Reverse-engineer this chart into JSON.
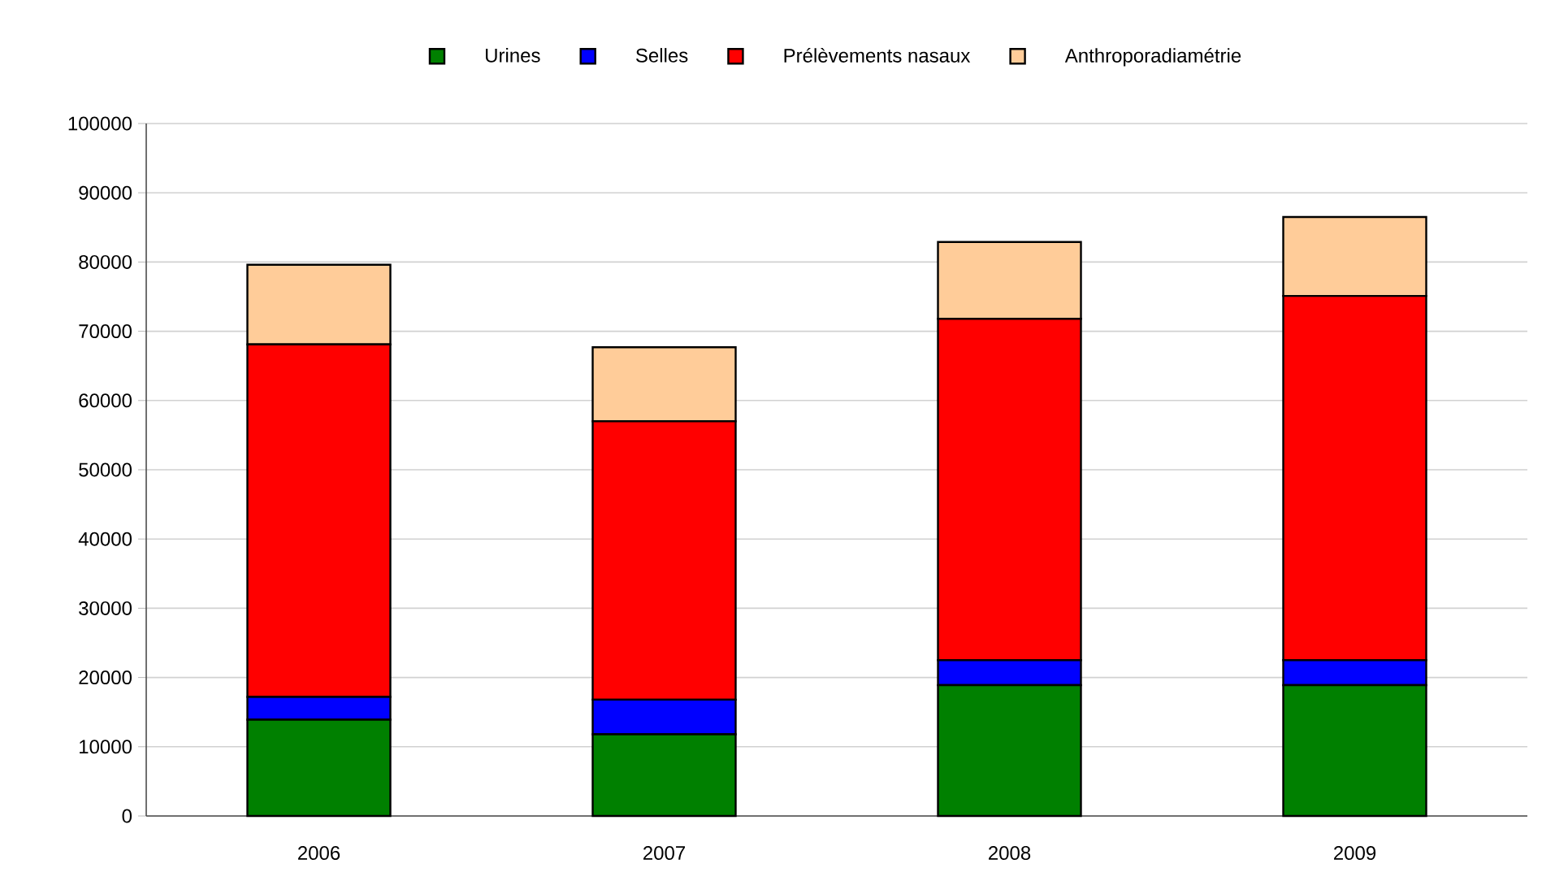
{
  "chart_data": {
    "type": "bar",
    "stacked": true,
    "categories": [
      "2006",
      "2007",
      "2008",
      "2009"
    ],
    "series": [
      {
        "name": "Urines",
        "color": "#008000",
        "values": [
          13900,
          11800,
          18900,
          18900
        ]
      },
      {
        "name": "Selles",
        "color": "#0000ff",
        "values": [
          3300,
          5000,
          3600,
          3600
        ]
      },
      {
        "name": "Prélèvements nasaux",
        "color": "#ff0000",
        "values": [
          50900,
          40200,
          49300,
          52600
        ]
      },
      {
        "name": "Anthroporadiamétrie",
        "color": "#ffcc99",
        "values": [
          11500,
          10700,
          11100,
          11400
        ]
      }
    ],
    "ylim": [
      0,
      100000
    ],
    "yticks": [
      0,
      10000,
      20000,
      30000,
      40000,
      50000,
      60000,
      70000,
      80000,
      90000,
      100000
    ],
    "grid": "y",
    "legend": "top"
  }
}
